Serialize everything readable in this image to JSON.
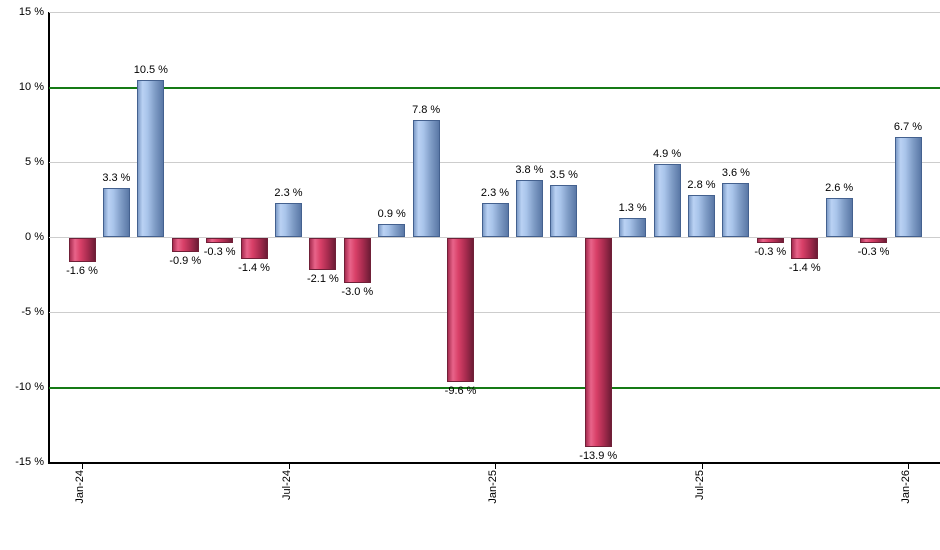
{
  "chart_data": {
    "type": "bar",
    "values": [
      -1.6,
      3.3,
      10.5,
      -0.9,
      -0.3,
      -1.4,
      2.3,
      -2.1,
      -3.0,
      0.9,
      7.8,
      -9.6,
      2.3,
      3.8,
      3.5,
      -13.9,
      1.3,
      4.9,
      2.8,
      3.6,
      -0.3,
      -1.4,
      2.6,
      -0.3,
      6.7
    ],
    "bar_labels": [
      "-1.6 %",
      "3.3 %",
      "10.5 %",
      "-0.9 %",
      "-0.3 %",
      "-1.4 %",
      "2.3 %",
      "-2.1 %",
      "-3.0 %",
      "0.9 %",
      "7.8 %",
      "-9.6 %",
      "2.3 %",
      "3.8 %",
      "3.5 %",
      "-13.9 %",
      "1.3 %",
      "4.9 %",
      "2.8 %",
      "3.6 %",
      "-0.3 %",
      "-1.4 %",
      "2.6 %",
      "-0.3 %",
      "6.7 %"
    ],
    "x_ticks": [
      {
        "label": "Jan-24",
        "index": 0
      },
      {
        "label": "Jul-24",
        "index": 6
      },
      {
        "label": "Jan-25",
        "index": 12
      },
      {
        "label": "Jul-25",
        "index": 18
      },
      {
        "label": "Jan-26",
        "index": 24
      }
    ],
    "y_ticks": [
      {
        "value": 15,
        "label": "15 %",
        "line": "grid"
      },
      {
        "value": 10,
        "label": "10 %",
        "line": "threshold"
      },
      {
        "value": 5,
        "label": "5 %",
        "line": "grid"
      },
      {
        "value": 0,
        "label": "0 %",
        "line": "grid"
      },
      {
        "value": -5,
        "label": "-5 %",
        "line": "grid"
      },
      {
        "value": -10,
        "label": "-10 %",
        "line": "threshold"
      },
      {
        "value": -15,
        "label": "-15 %",
        "line": "axis"
      }
    ],
    "ylim": [
      -15,
      15
    ],
    "grid": true,
    "legend": null,
    "colors": {
      "positive_bar": "#94b2dd",
      "negative_bar": "#cf3f66",
      "threshold_line": "#157a15",
      "gridline": "#cdcdcd",
      "axis_line": "#000000",
      "label_text": "#000000",
      "background": "#ffffff"
    }
  }
}
